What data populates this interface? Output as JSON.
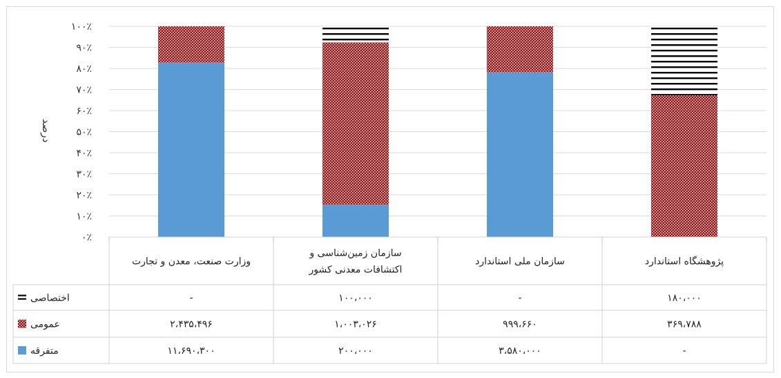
{
  "chart_data": {
    "type": "bar",
    "stacked": "percent",
    "ylabel": "درصد",
    "ylim": [
      0,
      100
    ],
    "ytick_labels": [
      "۰٪",
      "۱۰٪",
      "۲۰٪",
      "۳۰٪",
      "۴۰٪",
      "۵۰٪",
      "۶۰٪",
      "۷۰٪",
      "۸۰٪",
      "۹۰٪",
      "۱۰۰٪"
    ],
    "categories": [
      [
        "وزارت صنعت، معدن و تجارت"
      ],
      [
        "سازمان زمین‌شناسی و",
        "اکتشافات معدنی کشور"
      ],
      [
        "سازمان ملی استاندارد"
      ],
      [
        "پژوهشگاه استاندارد"
      ]
    ],
    "series": [
      {
        "name": "متفرقه",
        "color": "#5b9bd5",
        "pattern": "solid",
        "values": [
          11690300,
          200000,
          3580000,
          0
        ],
        "labels": [
          "۱۱،۶۹۰،۳۰۰",
          "۲۰۰،۰۰۰",
          "۳،۵۸۰،۰۰۰",
          "-"
        ]
      },
      {
        "name": "عمومی",
        "color": "#c00000",
        "pattern": "checker",
        "values": [
          2435496,
          1003026,
          999660,
          369788
        ],
        "labels": [
          "۲،۴۳۵،۴۹۶",
          "۱،۰۰۳،۰۲۶",
          "۹۹۹،۶۶۰",
          "۳۶۹،۷۸۸"
        ]
      },
      {
        "name": "اختصاصی",
        "color": "#000000",
        "pattern": "hlines",
        "values": [
          0,
          100000,
          0,
          180000
        ],
        "labels": [
          "-",
          "۱۰۰،۰۰۰",
          "-",
          "۱۸۰،۰۰۰"
        ]
      }
    ],
    "grid": true,
    "legend": "data-table"
  }
}
